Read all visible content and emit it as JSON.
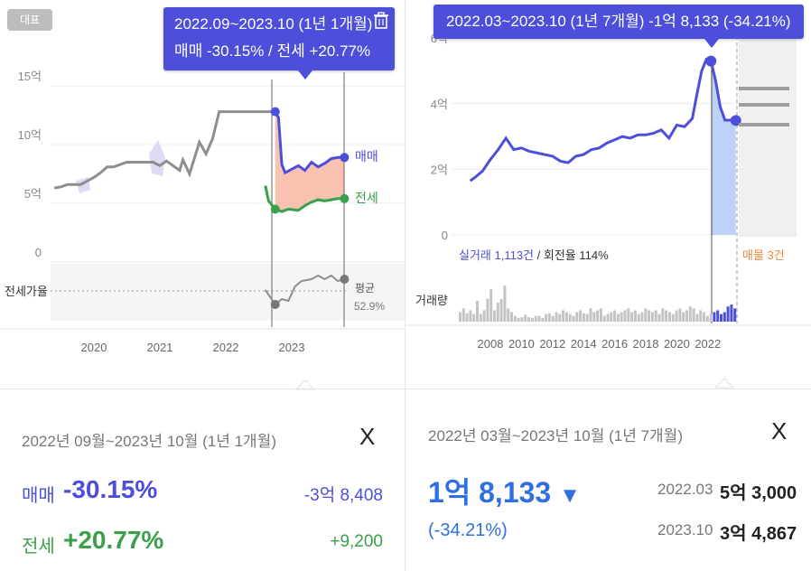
{
  "left": {
    "badge": "대표",
    "tooltip": {
      "line1": "2022.09~2023.10 (1년 1개월)",
      "line2": "매매 -30.15%  /  전세 +20.77%"
    },
    "trash_icon": "trash-icon",
    "chart_data": {
      "type": "line",
      "y_ticks": [
        "15억",
        "10억",
        "5억",
        "0"
      ],
      "x_ticks": [
        "2020",
        "2021",
        "2022",
        "2023"
      ],
      "series": [
        {
          "name": "매매",
          "color": "#4d4fdb",
          "x": [
            2022.75,
            2022.8,
            2022.85,
            2022.9,
            2023.0,
            2023.1,
            2023.2,
            2023.3,
            2023.4,
            2023.5,
            2023.6,
            2023.7,
            2023.8
          ],
          "y": [
            12.8,
            12.3,
            8.3,
            7.6,
            7.9,
            8.2,
            7.8,
            8.5,
            8.1,
            8.4,
            8.8,
            8.9,
            8.9
          ]
        },
        {
          "name": "전세",
          "color": "#3aa04a",
          "x": [
            2022.6,
            2022.65,
            2022.75,
            2022.85,
            2022.95,
            2023.1,
            2023.2,
            2023.3,
            2023.4,
            2023.5,
            2023.6,
            2023.7,
            2023.8
          ],
          "y": [
            6.5,
            5.2,
            4.5,
            4.3,
            4.5,
            4.4,
            4.8,
            5.1,
            5.3,
            5.2,
            5.3,
            5.4,
            5.4
          ]
        },
        {
          "name": "",
          "color": "#888888",
          "x": [
            2019.4,
            2019.5,
            2019.6,
            2019.8,
            2020.0,
            2020.1,
            2020.2,
            2020.3,
            2020.5,
            2020.7,
            2020.9,
            2021.0,
            2021.1,
            2021.3,
            2021.35,
            2021.45,
            2021.6,
            2021.7,
            2021.8,
            2021.9,
            2022.0,
            2022.5,
            2022.75
          ],
          "y": [
            6.3,
            6.4,
            6.6,
            6.6,
            7.2,
            7.6,
            8.1,
            8.1,
            8.5,
            8.5,
            8.5,
            8.2,
            8.6,
            7.8,
            8.7,
            7.5,
            10.2,
            9.2,
            10.5,
            12.8,
            12.8,
            12.8,
            12.8
          ]
        }
      ],
      "ratio_series": {
        "x": [
          2022.6,
          2022.75,
          2022.85,
          2022.95,
          2023.05,
          2023.15,
          2023.3,
          2023.4,
          2023.5,
          2023.6,
          2023.7,
          2023.8
        ],
        "rel": [
          0.55,
          0.15,
          0.3,
          0.25,
          0.65,
          0.8,
          0.85,
          0.95,
          0.85,
          0.95,
          0.8,
          0.85
        ]
      },
      "range": [
        "2022.09",
        "2023.10"
      ]
    },
    "series_label_maemae": "매매",
    "series_label_jeonse": "전세",
    "ratio_label": "전세가율",
    "avg_label": "평균",
    "avg_value": "52.9%",
    "summary": {
      "period": "2022년 09월~2023년 10월 (1년 1개월)",
      "close": "X",
      "maemae_label": "매매",
      "maemae_pct": "-30.15%",
      "maemae_amt": "-3억 8,408",
      "jeonse_label": "전세",
      "jeonse_pct": "+20.77%",
      "jeonse_amt": "+9,200"
    }
  },
  "right": {
    "tooltip": "2022.03~2023.10 (1년 7개월)  -1억 8,133 (-34.21%)",
    "chart_data": {
      "type": "line",
      "y_ticks": [
        "6억",
        "4억",
        "2억",
        "0"
      ],
      "x_ticks": [
        "2008",
        "2010",
        "2012",
        "2014",
        "2016",
        "2018",
        "2020",
        "2022"
      ],
      "series": [
        {
          "name": "",
          "color": "#4d4fdb",
          "x": [
            2006.7,
            2007.0,
            2007.5,
            2008.0,
            2008.5,
            2009.0,
            2009.5,
            2010.0,
            2010.5,
            2011.0,
            2011.5,
            2012.0,
            2012.5,
            2013.0,
            2013.5,
            2014.0,
            2014.5,
            2015.0,
            2015.5,
            2016.0,
            2016.5,
            2017.0,
            2017.5,
            2018.0,
            2018.5,
            2019.0,
            2019.5,
            2020.0,
            2020.5,
            2021.0,
            2021.3,
            2021.6,
            2021.9,
            2022.2,
            2022.5,
            2022.8,
            2023.1,
            2023.5,
            2023.8
          ],
          "y": [
            1.65,
            1.75,
            1.95,
            2.3,
            2.6,
            2.95,
            2.6,
            2.65,
            2.55,
            2.5,
            2.45,
            2.4,
            2.25,
            2.2,
            2.4,
            2.45,
            2.6,
            2.65,
            2.8,
            2.9,
            3.0,
            2.95,
            3.05,
            3.05,
            3.1,
            3.2,
            2.95,
            3.35,
            3.3,
            3.55,
            4.3,
            5.0,
            5.35,
            5.3,
            4.7,
            3.9,
            3.5,
            3.5,
            3.49
          ]
        }
      ],
      "volume": [
        0.25,
        0.35,
        0.22,
        0.3,
        0.2,
        0.55,
        0.2,
        0.3,
        0.6,
        0.85,
        0.3,
        0.5,
        0.6,
        0.95,
        0.35,
        0.25,
        0.15,
        0.1,
        0.12,
        0.18,
        0.12,
        0.1,
        0.15,
        0.15,
        0.1,
        0.2,
        0.22,
        0.15,
        0.25,
        0.2,
        0.3,
        0.25,
        0.2,
        0.15,
        0.25,
        0.3,
        0.22,
        0.2,
        0.35,
        0.25,
        0.3,
        0.35,
        0.15,
        0.2,
        0.25,
        0.3,
        0.2,
        0.25,
        0.3,
        0.35,
        0.25,
        0.3,
        0.2,
        0.25,
        0.35,
        0.3,
        0.25,
        0.3,
        0.2,
        0.35,
        0.3,
        0.25,
        0.2,
        0.3,
        0.35,
        0.25,
        0.3,
        0.4,
        0.35,
        0.2,
        0.3,
        0.25,
        0.15,
        0.2,
        0.25,
        0.3,
        0.2,
        0.25,
        0.4,
        0.45,
        0.35
      ],
      "range": [
        "2022.03",
        "2023.10"
      ]
    },
    "trade_label": "실거래 1,113건",
    "turnover_label": " / 회전율 114%",
    "listing_label": "매물 3건",
    "volume_label": "거래량",
    "summary": {
      "period": "2022년 03월~2023년 10월 (1년 7개월)",
      "close": "X",
      "change": "1억 8,133",
      "arrow": "▼",
      "pct": "(-34.21%)",
      "start_date": "2022.03",
      "start_price": "5억 3,000",
      "end_date": "2023.10",
      "end_price": "3억 4,867"
    },
    "colors": {
      "accent": "#4d4fdb",
      "positive_red": "#e05a3a",
      "green": "#3aa04a",
      "blue": "#2f6fe0",
      "listing": "#f08a3c"
    }
  }
}
